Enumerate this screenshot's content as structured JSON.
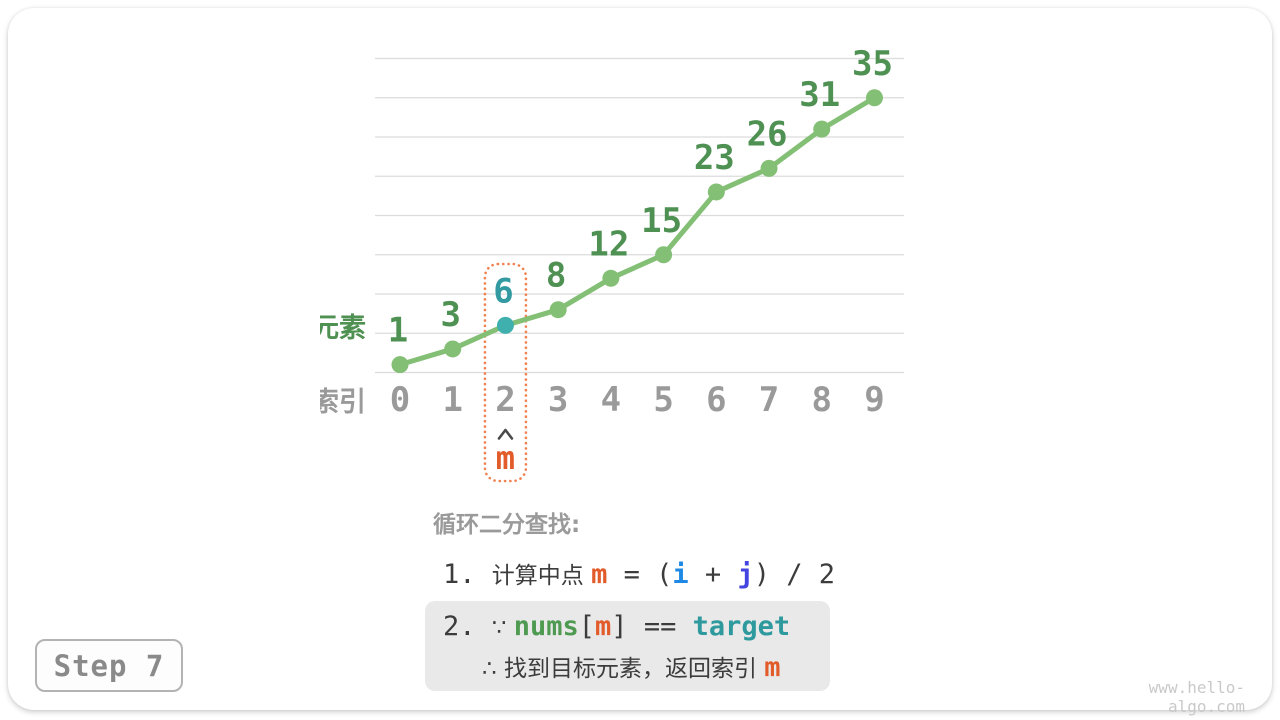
{
  "card": {
    "step_badge": "Step 7",
    "watermark": "www.hello-algo.com"
  },
  "chart_data": {
    "type": "line",
    "title": "",
    "xlabel": "索引",
    "ylabel": "元素",
    "categories": [
      0,
      1,
      2,
      3,
      4,
      5,
      6,
      7,
      8,
      9
    ],
    "values": [
      1,
      3,
      6,
      8,
      12,
      15,
      23,
      26,
      31,
      35
    ],
    "ylim": [
      0,
      40
    ],
    "grid_step": 5,
    "grid": true,
    "legend": "none",
    "highlight": {
      "index": 2,
      "value": 6,
      "marker": "m",
      "caret_icon": "caret-up"
    },
    "colors": {
      "line": "#83bf75",
      "point": "#83bf75",
      "point_label": "#4e9153",
      "highlight_point": "#3fb0ad",
      "highlight_label": "#339aa2",
      "index_label": "#9a9a9a",
      "axis_label_y": "#4e9153",
      "axis_label_x": "#9a9a9a",
      "gridline": "#dcdcdc",
      "highlight_box": "#f08150",
      "marker": "#e25c2b",
      "caret": "#4a4a4a"
    }
  },
  "explanation": {
    "heading": "循环二分查找:",
    "step1": [
      {
        "t": "1. ",
        "s": "code"
      },
      {
        "t": "计算中点 ",
        "s": "plain"
      },
      {
        "t": "m",
        "s": "m"
      },
      {
        "t": " = (",
        "s": "code"
      },
      {
        "t": "i",
        "s": "i"
      },
      {
        "t": " + ",
        "s": "code"
      },
      {
        "t": "j",
        "s": "j"
      },
      {
        "t": ") / 2",
        "s": "code"
      }
    ],
    "step2_line1": [
      {
        "t": "2. ",
        "s": "code"
      },
      {
        "t": "∵ ",
        "s": "plain"
      },
      {
        "t": "nums",
        "s": "nums"
      },
      {
        "t": "[",
        "s": "code"
      },
      {
        "t": "m",
        "s": "m"
      },
      {
        "t": "]",
        "s": "code"
      },
      {
        "t": " == ",
        "s": "code"
      },
      {
        "t": "target",
        "s": "target"
      }
    ],
    "step2_line2": [
      {
        "t": "∴ ",
        "s": "plain"
      },
      {
        "t": "找到目标元素，返回索引 ",
        "s": "plain"
      },
      {
        "t": "m",
        "s": "m"
      }
    ]
  }
}
